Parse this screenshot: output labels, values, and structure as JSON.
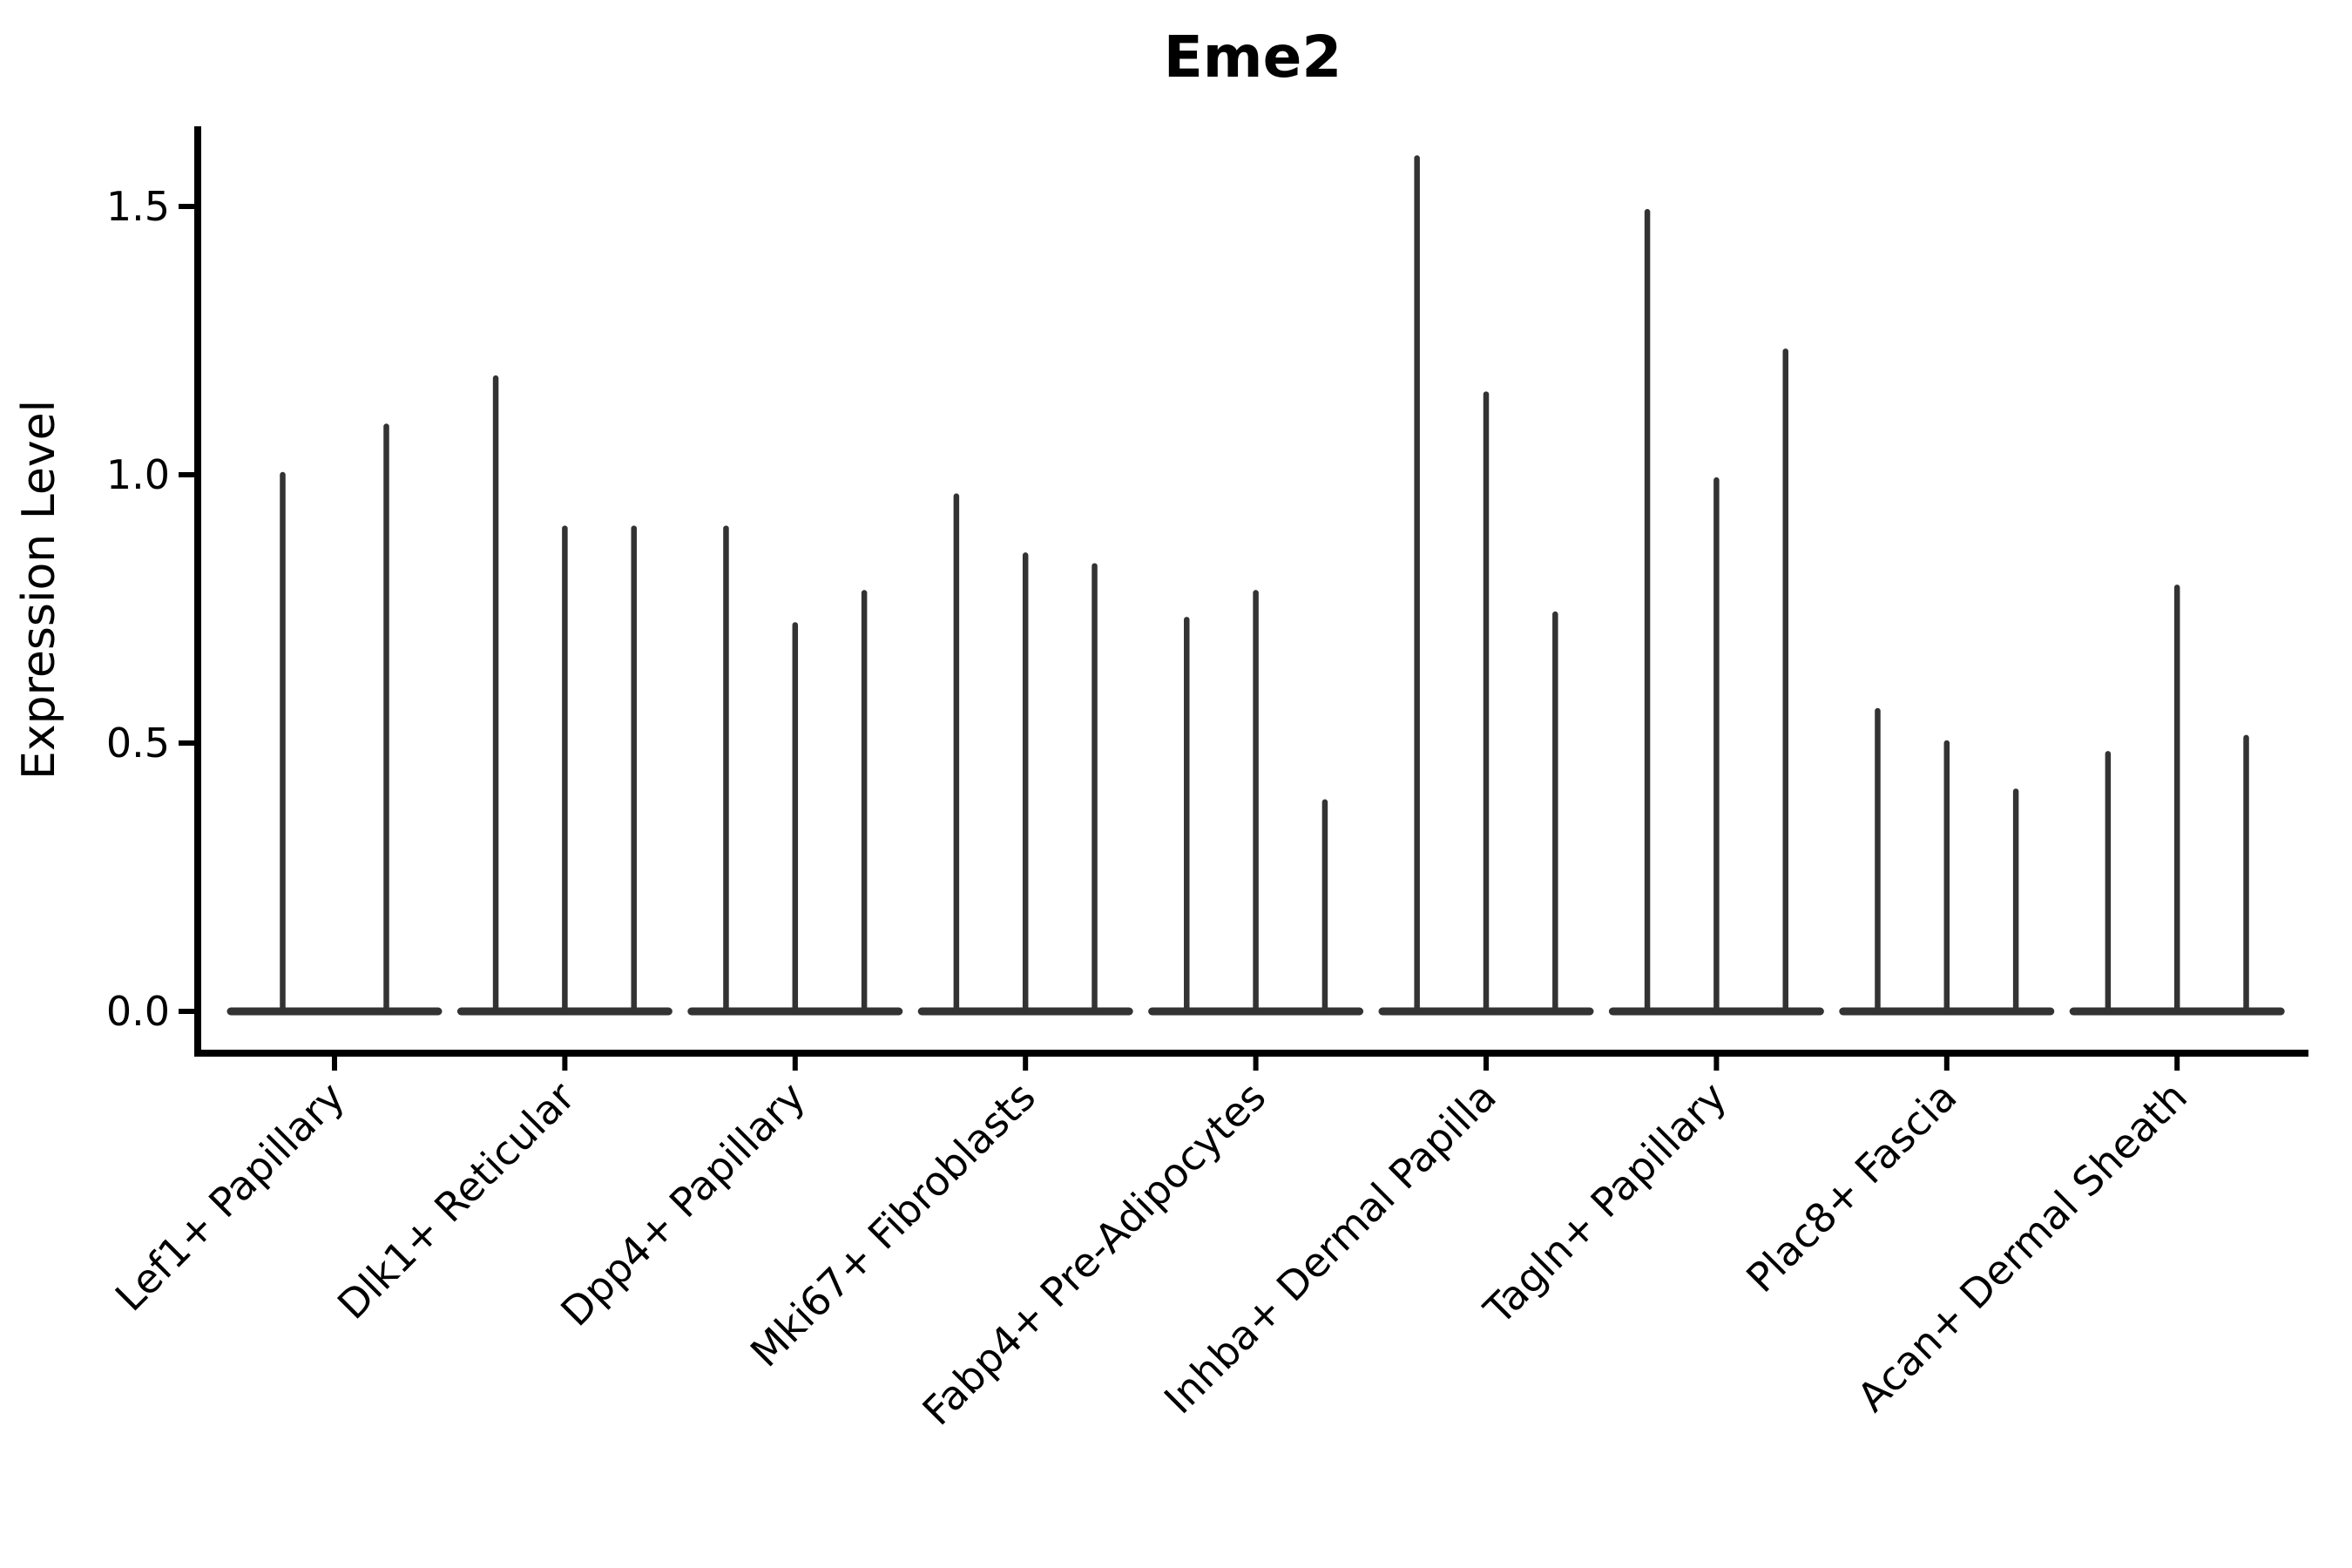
{
  "chart_data": {
    "type": "violin",
    "title": "Eme2",
    "ylabel": "Expression Level",
    "xlabel": "",
    "ylim": [
      -0.08,
      1.66
    ],
    "yticks": [
      0,
      0.5,
      1.0,
      1.5
    ],
    "ytick_labels": [
      "0.0",
      "0.5",
      "1.0",
      "1.5"
    ],
    "grid": false,
    "legend_position": "none",
    "x_tick_label_rotation_deg": 45,
    "violin_color": "#333333",
    "axis_color": "#000000",
    "background_color": "#ffffff",
    "categories": [
      "Lef1+ Papillary",
      "Dlk1+ Reticular",
      "Dpp4+ Papillary",
      "Mki67+ Fibroblasts",
      "Fabp4+ Pre-Adipocytes",
      "Inhba+ Dermal Papilla",
      "Tagln+ Papillary",
      "Plac8+ Fascia",
      "Acan+ Dermal Sheath"
    ],
    "groups": [
      {
        "label": "Lef1+ Papillary",
        "violin_max_expression": [
          1.0,
          1.09
        ]
      },
      {
        "label": "Dlk1+ Reticular",
        "violin_max_expression": [
          1.18,
          0.9,
          0.9
        ]
      },
      {
        "label": "Dpp4+ Papillary",
        "violin_max_expression": [
          0.9,
          0.72,
          0.78
        ]
      },
      {
        "label": "Mki67+ Fibroblasts",
        "violin_max_expression": [
          0.96,
          0.85,
          0.83
        ]
      },
      {
        "label": "Fabp4+ Pre-Adipocytes",
        "violin_max_expression": [
          0.73,
          0.78,
          0.39
        ]
      },
      {
        "label": "Inhba+ Dermal Papilla",
        "violin_max_expression": [
          1.59,
          1.15,
          0.74
        ]
      },
      {
        "label": "Tagln+ Papillary",
        "violin_max_expression": [
          1.49,
          0.99,
          1.23
        ]
      },
      {
        "label": "Plac8+ Fascia",
        "violin_max_expression": [
          0.56,
          0.5,
          0.41
        ]
      },
      {
        "label": "Acan+ Dermal Sheath",
        "violin_max_expression": [
          0.48,
          0.79,
          0.51
        ]
      }
    ]
  }
}
